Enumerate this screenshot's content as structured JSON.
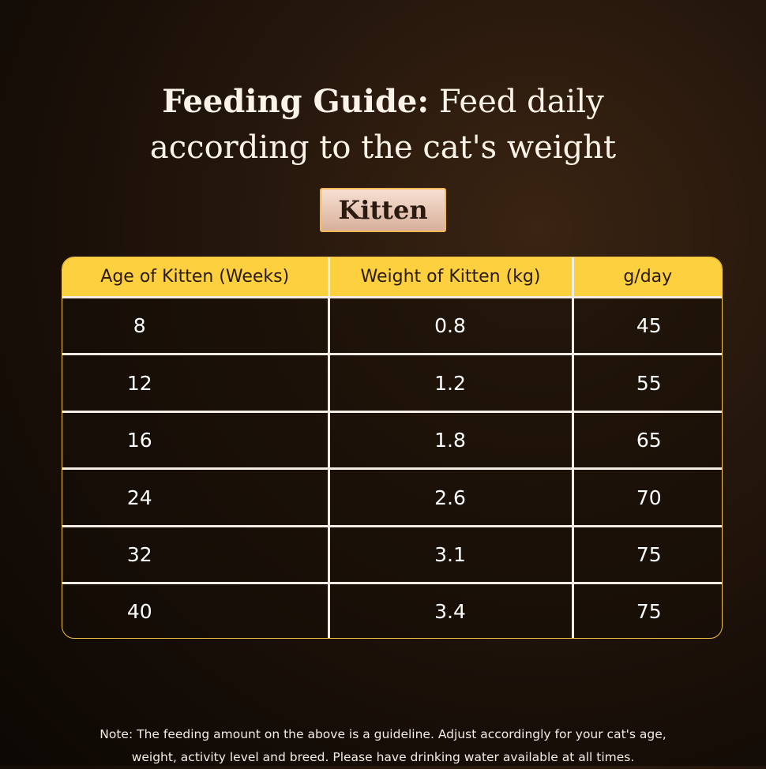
{
  "header": {
    "title_bold": "Feeding Guide:",
    "title_line1": "Feed daily",
    "title_line2": "according to the cat's weight",
    "badge": "Kitten"
  },
  "table": {
    "columns": [
      "Age of Kitten (Weeks)",
      "Weight of Kitten (kg)",
      "g/day"
    ],
    "rows": [
      [
        "8",
        "0.8",
        "45"
      ],
      [
        "12",
        "1.2",
        "55"
      ],
      [
        "16",
        "1.8",
        "65"
      ],
      [
        "24",
        "2.6",
        "70"
      ],
      [
        "32",
        "3.1",
        "75"
      ],
      [
        "40",
        "3.4",
        "75"
      ]
    ]
  },
  "note": {
    "line1": "Note: The feeding amount on the above is a guideline. Adjust accordingly for your cat's age,",
    "line2": "weight, activity level and breed. Please have drinking water available at all times."
  }
}
